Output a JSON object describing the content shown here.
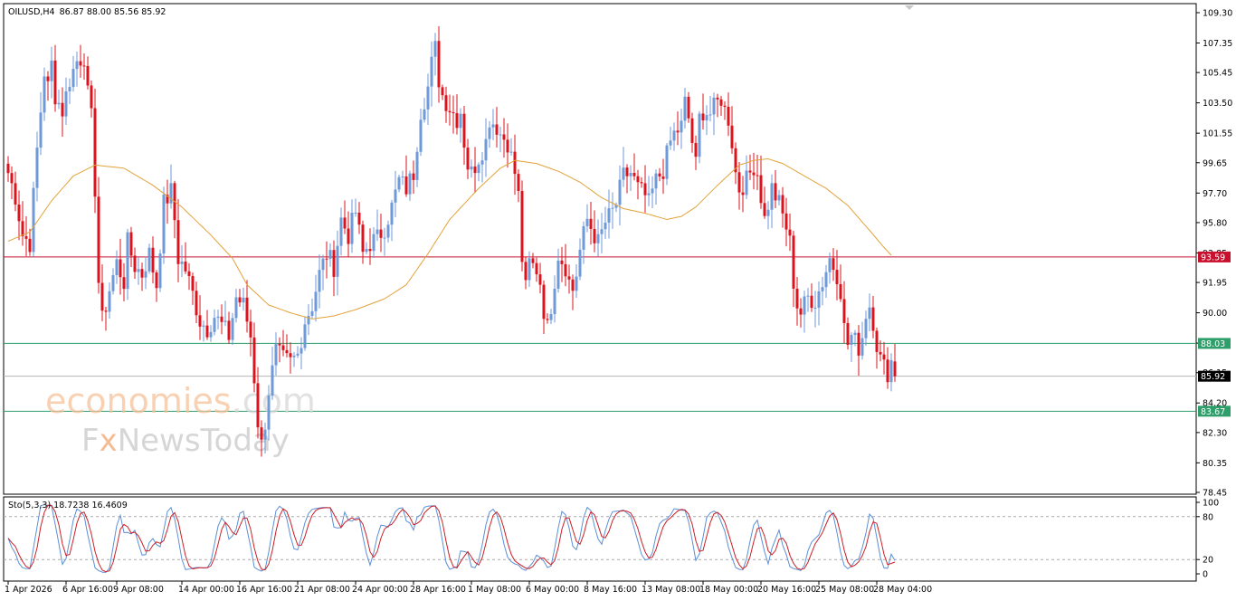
{
  "header": {
    "symbol_label": "OILUSD,H4",
    "ohlc_label": "86.87 88.00 85.56 85.92"
  },
  "watermark": {
    "brand_main": "economies",
    "brand_tld": ".com",
    "brand_sub_f": "F",
    "brand_sub_x": "x",
    "brand_sub_rest": "NewsToday"
  },
  "colors": {
    "bull": "#6f9ad8",
    "bear": "#d9141e",
    "ma": "#e2a23a",
    "resistance": "#c8102e",
    "support": "#2e9e6a",
    "current": "#b5b5b5",
    "stoch_main": "#5b8fd6",
    "stoch_signal": "#cc1f27"
  },
  "chart_data": [
    {
      "type": "candlestick",
      "title": "OILUSD,H4",
      "ohlc_last": {
        "open": 86.87,
        "high": 88.0,
        "low": 85.56,
        "close": 85.92
      },
      "ylim": [
        78.45,
        109.3
      ],
      "y_ticks": [
        "109.30",
        "107.35",
        "105.45",
        "103.50",
        "101.55",
        "99.65",
        "97.70",
        "95.80",
        "93.85",
        "91.95",
        "90.00",
        "88.05",
        "86.15",
        "84.20",
        "82.30",
        "80.35",
        "78.45"
      ],
      "x_tick_labels": [
        "1 Apr 2026",
        "6 Apr 16:00",
        "9 Apr 08:00",
        "14 Apr 00:00",
        "16 Apr 16:00",
        "21 Apr 08:00",
        "24 Apr 00:00",
        "28 Apr 16:00",
        "1 May 08:00",
        "6 May 00:00",
        "8 May 16:00",
        "13 May 08:00",
        "18 May 00:00",
        "20 May 16:00",
        "25 May 08:00",
        "28 May 04:00"
      ],
      "x_tick_index": [
        0,
        16,
        30,
        48,
        64,
        80,
        96,
        112,
        128,
        144,
        160,
        176,
        192,
        208,
        224,
        240
      ],
      "close_path": [
        [
          0,
          99.0
        ],
        [
          2,
          97.5
        ],
        [
          4,
          95.0
        ],
        [
          6,
          94.5
        ],
        [
          8,
          100.5
        ],
        [
          10,
          105.5
        ],
        [
          11,
          104.5
        ],
        [
          12,
          106.0
        ],
        [
          13,
          104.0
        ],
        [
          15,
          103.0
        ],
        [
          17,
          105.0
        ],
        [
          19,
          106.2
        ],
        [
          21,
          106.5
        ],
        [
          22,
          104.0
        ],
        [
          23,
          102.5
        ],
        [
          24,
          98.0
        ],
        [
          25,
          92.0
        ],
        [
          26,
          89.5
        ],
        [
          28,
          91.5
        ],
        [
          30,
          93.2
        ],
        [
          32,
          92.0
        ],
        [
          33,
          94.5
        ],
        [
          35,
          93.0
        ],
        [
          37,
          92.5
        ],
        [
          39,
          93.8
        ],
        [
          41,
          91.8
        ],
        [
          43,
          97.0
        ],
        [
          45,
          97.8
        ],
        [
          46,
          96.0
        ],
        [
          47,
          93.5
        ],
        [
          49,
          92.8
        ],
        [
          51,
          91.2
        ],
        [
          53,
          89.5
        ],
        [
          55,
          89.0
        ],
        [
          57,
          89.8
        ],
        [
          59,
          89.2
        ],
        [
          61,
          88.5
        ],
        [
          63,
          91.0
        ],
        [
          65,
          90.5
        ],
        [
          67,
          88.5
        ],
        [
          68,
          85.8
        ],
        [
          69,
          83.0
        ],
        [
          70,
          81.5
        ],
        [
          71,
          83.0
        ],
        [
          72,
          85.0
        ],
        [
          74,
          87.5
        ],
        [
          76,
          87.0
        ],
        [
          78,
          86.8
        ],
        [
          80,
          87.3
        ],
        [
          82,
          89.5
        ],
        [
          84,
          90.5
        ],
        [
          86,
          92.5
        ],
        [
          88,
          93.8
        ],
        [
          90,
          93.0
        ],
        [
          92,
          96.0
        ],
        [
          94,
          95.0
        ],
        [
          96,
          96.5
        ],
        [
          98,
          93.8
        ],
        [
          100,
          94.5
        ],
        [
          102,
          94.8
        ],
        [
          104,
          95.5
        ],
        [
          106,
          96.8
        ],
        [
          108,
          98.5
        ],
        [
          110,
          98.0
        ],
        [
          112,
          99.0
        ],
        [
          114,
          103.0
        ],
        [
          116,
          104.5
        ],
        [
          117,
          106.0
        ],
        [
          118,
          107.0
        ],
        [
          119,
          105.0
        ],
        [
          120,
          104.0
        ],
        [
          122,
          103.2
        ],
        [
          124,
          102.5
        ],
        [
          125,
          103.0
        ],
        [
          126,
          101.0
        ],
        [
          127,
          99.5
        ],
        [
          128,
          99.0
        ],
        [
          130,
          100.0
        ],
        [
          132,
          101.0
        ],
        [
          133,
          102.5
        ],
        [
          135,
          102.0
        ],
        [
          136,
          101.5
        ],
        [
          138,
          101.0
        ],
        [
          140,
          99.0
        ],
        [
          141,
          97.5
        ],
        [
          142,
          93.5
        ],
        [
          143,
          91.5
        ],
        [
          144,
          93.2
        ],
        [
          146,
          92.8
        ],
        [
          147,
          92.0
        ],
        [
          148,
          90.2
        ],
        [
          149,
          89.0
        ],
        [
          150,
          90.5
        ],
        [
          152,
          93.8
        ],
        [
          154,
          93.0
        ],
        [
          155,
          92.0
        ],
        [
          156,
          91.5
        ],
        [
          157,
          92.5
        ],
        [
          158,
          94.0
        ],
        [
          160,
          96.0
        ],
        [
          162,
          95.0
        ],
        [
          163,
          94.5
        ],
        [
          165,
          95.8
        ],
        [
          167,
          96.5
        ],
        [
          168,
          97.0
        ],
        [
          170,
          98.8
        ],
        [
          172,
          99.0
        ],
        [
          174,
          98.0
        ],
        [
          176,
          97.5
        ],
        [
          177,
          97.0
        ],
        [
          178,
          97.8
        ],
        [
          179,
          98.5
        ],
        [
          181,
          99.2
        ],
        [
          183,
          101.0
        ],
        [
          184,
          101.5
        ],
        [
          186,
          102.0
        ],
        [
          187,
          103.5
        ],
        [
          188,
          102.5
        ],
        [
          189,
          101.0
        ],
        [
          190,
          99.5
        ],
        [
          191,
          102.5
        ],
        [
          192,
          103.0
        ],
        [
          194,
          102.8
        ],
        [
          196,
          103.5
        ],
        [
          197,
          103.8
        ],
        [
          198,
          103.0
        ],
        [
          199,
          102.5
        ],
        [
          200,
          101.0
        ],
        [
          201,
          99.0
        ],
        [
          202,
          98.0
        ],
        [
          204,
          98.5
        ],
        [
          206,
          99.5
        ],
        [
          207,
          99.0
        ],
        [
          208,
          97.5
        ],
        [
          209,
          96.0
        ],
        [
          211,
          98.0
        ],
        [
          213,
          97.0
        ],
        [
          215,
          95.5
        ],
        [
          216,
          94.5
        ],
        [
          217,
          92.0
        ],
        [
          218,
          90.5
        ],
        [
          219,
          90.0
        ],
        [
          221,
          91.0
        ],
        [
          223,
          90.8
        ],
        [
          225,
          92.0
        ],
        [
          227,
          93.5
        ],
        [
          229,
          92.5
        ],
        [
          230,
          91.5
        ],
        [
          231,
          89.0
        ],
        [
          232,
          88.0
        ],
        [
          233,
          88.5
        ],
        [
          235,
          87.8
        ],
        [
          236,
          88.5
        ],
        [
          237,
          90.0
        ],
        [
          238,
          90.5
        ],
        [
          239,
          89.5
        ],
        [
          240,
          88.0
        ],
        [
          241,
          87.0
        ],
        [
          242,
          86.5
        ],
        [
          243,
          86.2
        ],
        [
          244,
          86.9
        ],
        [
          245,
          85.92
        ]
      ],
      "ma_path": [
        [
          0,
          94.6
        ],
        [
          6,
          95.2
        ],
        [
          12,
          97.2
        ],
        [
          18,
          98.8
        ],
        [
          24,
          99.5
        ],
        [
          32,
          99.3
        ],
        [
          40,
          98.2
        ],
        [
          48,
          96.8
        ],
        [
          56,
          95.0
        ],
        [
          62,
          93.5
        ],
        [
          66,
          91.8
        ],
        [
          72,
          90.5
        ],
        [
          78,
          90.0
        ],
        [
          84,
          89.6
        ],
        [
          90,
          89.8
        ],
        [
          96,
          90.2
        ],
        [
          104,
          90.9
        ],
        [
          110,
          91.8
        ],
        [
          116,
          93.8
        ],
        [
          122,
          96.0
        ],
        [
          130,
          98.0
        ],
        [
          136,
          99.3
        ],
        [
          140,
          99.8
        ],
        [
          146,
          99.6
        ],
        [
          152,
          99.1
        ],
        [
          158,
          98.4
        ],
        [
          164,
          97.4
        ],
        [
          170,
          96.7
        ],
        [
          176,
          96.4
        ],
        [
          182,
          96.0
        ],
        [
          186,
          96.2
        ],
        [
          190,
          96.8
        ],
        [
          196,
          98.2
        ],
        [
          202,
          99.5
        ],
        [
          206,
          99.8
        ],
        [
          210,
          99.9
        ],
        [
          214,
          99.6
        ],
        [
          220,
          98.8
        ],
        [
          226,
          98.0
        ],
        [
          232,
          96.9
        ],
        [
          238,
          95.3
        ],
        [
          242,
          94.2
        ],
        [
          244,
          93.7
        ]
      ],
      "levels": [
        {
          "label": "93.59",
          "value": 93.59,
          "kind": "resistance"
        },
        {
          "label": "88.03",
          "value": 88.03,
          "kind": "support"
        },
        {
          "label": "85.92",
          "value": 85.92,
          "kind": "current"
        },
        {
          "label": "83.67",
          "value": 83.67,
          "kind": "support"
        }
      ]
    },
    {
      "type": "line",
      "title": "Sto(5,3,3) 18.7238 16.4609",
      "ylim": [
        0,
        100
      ],
      "y_ticks": [
        "100",
        "80",
        "20",
        "0"
      ],
      "levels": [
        80,
        20
      ],
      "series": [
        {
          "role": "main",
          "last": 18.7238
        },
        {
          "role": "signal",
          "last": 16.4609
        }
      ]
    }
  ]
}
